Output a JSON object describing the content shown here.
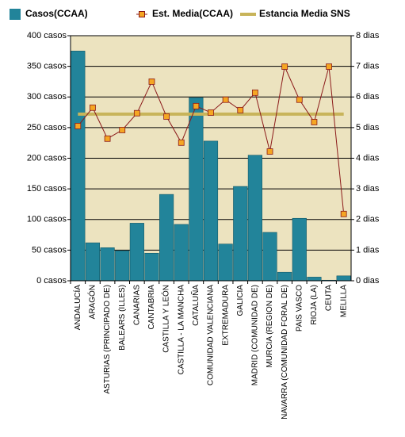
{
  "chart_data": {
    "type": "bar",
    "categories": [
      "ANDALUCÍA",
      "ARAGÓN",
      "ASTURIAS (PRINCIPADO DE)",
      "BALEARS (ILLES)",
      "CANARIAS",
      "CANTABRIA",
      "CASTILLA Y LEÓN",
      "CASTILLA - LA MANCHA",
      "CATALUÑA",
      "COMUNIDAD VALENCIANA",
      "EXTREMADURA",
      "GALICIA",
      "MADRID (COMUNIDAD DE)",
      "MURCIA (REGION DE)",
      "NAVARRA (COMUNIDAD FORAL DE)",
      "PAIS VASCO",
      "RIOJA (LA)",
      "CEUTA",
      "MELILLA"
    ],
    "series": [
      {
        "name": "Casos(CCAA)",
        "type": "bar",
        "color": "#22849a",
        "values": [
          375,
          62,
          54,
          49,
          94,
          45,
          141,
          92,
          299,
          228,
          60,
          154,
          205,
          79,
          14,
          102,
          6,
          1,
          8
        ]
      },
      {
        "name": "Est. Media(CCAA)",
        "type": "line",
        "axis": "y2",
        "color": "#8b1a1a",
        "marker_color": "#f5a623",
        "values": [
          5.05,
          5.65,
          4.64,
          4.92,
          5.47,
          6.5,
          5.36,
          4.51,
          5.7,
          5.49,
          5.91,
          5.57,
          6.14,
          4.22,
          6.99,
          5.91,
          5.18,
          6.99,
          2.18
        ]
      },
      {
        "name": "Estancia Media SNS",
        "type": "flat",
        "axis": "y2",
        "color": "#c8b45a",
        "values": [
          5.44,
          5.44,
          5.44,
          5.44,
          5.44,
          5.44,
          5.44,
          5.44,
          5.44,
          5.44,
          5.44,
          5.44,
          5.44,
          5.44,
          5.44,
          5.44,
          5.44,
          5.44,
          5.44
        ]
      }
    ],
    "ylim": [
      0,
      400
    ],
    "yticks": [
      {
        "value": 0,
        "label": "0 casos"
      },
      {
        "value": 50,
        "label": "50 casos"
      },
      {
        "value": 100,
        "label": "100 casos"
      },
      {
        "value": 150,
        "label": "150 casos"
      },
      {
        "value": 200,
        "label": "200 casos"
      },
      {
        "value": 250,
        "label": "250 casos"
      },
      {
        "value": 300,
        "label": "300 casos"
      },
      {
        "value": 350,
        "label": "350 casos"
      },
      {
        "value": 400,
        "label": "400 casos"
      }
    ],
    "y2lim": [
      0,
      8
    ],
    "y2ticks": [
      {
        "value": 0,
        "label": "0 dias"
      },
      {
        "value": 1,
        "label": "1 dias"
      },
      {
        "value": 2,
        "label": "2 dias"
      },
      {
        "value": 3,
        "label": "3 dias"
      },
      {
        "value": 4,
        "label": "4 dias"
      },
      {
        "value": 5,
        "label": "5 dias"
      },
      {
        "value": 6,
        "label": "6 dias"
      },
      {
        "value": 7,
        "label": "7 dias"
      },
      {
        "value": 8,
        "label": "8 dias"
      }
    ],
    "grid": true
  }
}
